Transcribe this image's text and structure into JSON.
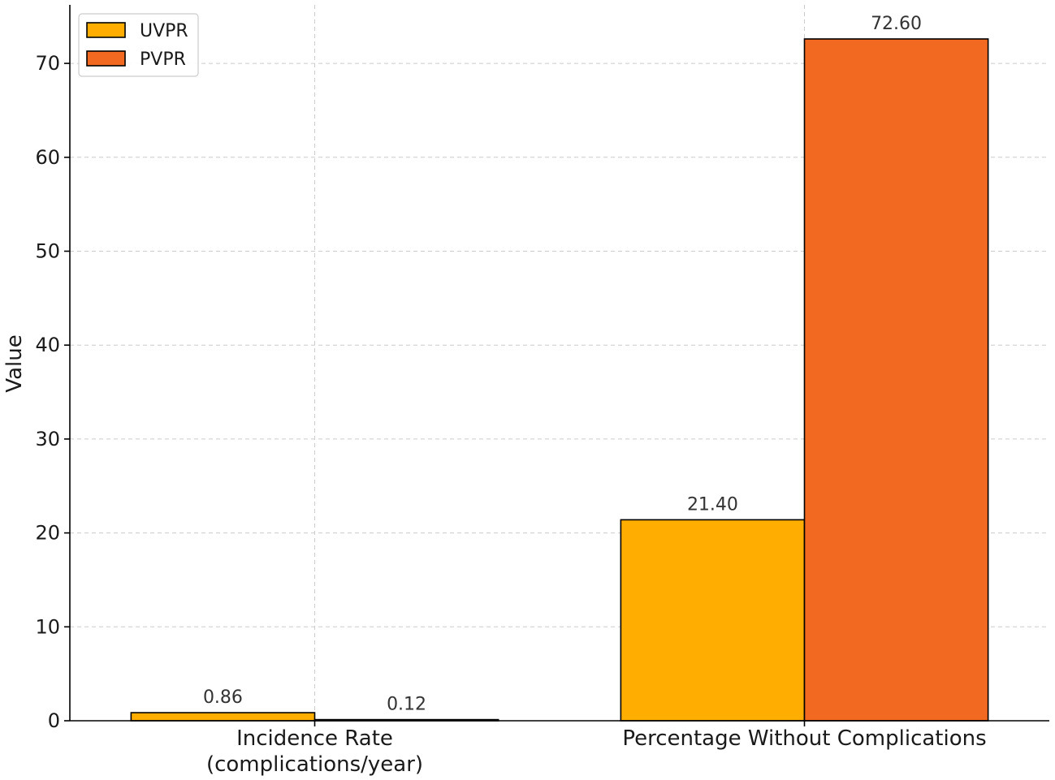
{
  "chart_data": {
    "type": "bar",
    "categories": [
      "Incidence Rate\n(complications/year)",
      "Percentage Without Complications"
    ],
    "series": [
      {
        "name": "UVPR",
        "values": [
          0.86,
          21.4
        ],
        "labels": [
          "0.86",
          "21.40"
        ],
        "color": "#FFAE00"
      },
      {
        "name": "PVPR",
        "values": [
          0.12,
          72.6
        ],
        "labels": [
          "0.12",
          "72.60"
        ],
        "color": "#F26A21"
      }
    ],
    "title": "",
    "xlabel": "",
    "ylabel": "Value",
    "ylim": [
      0,
      76.23
    ],
    "yticks": [
      0,
      10,
      20,
      30,
      40,
      50,
      60,
      70
    ],
    "grid": true,
    "legend_position": "top-left"
  }
}
